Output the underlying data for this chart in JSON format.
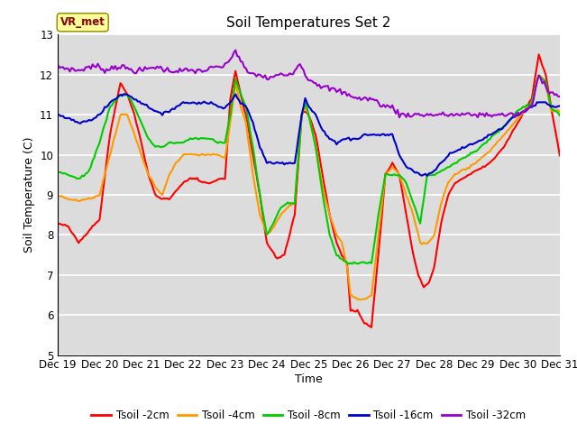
{
  "title": "Soil Temperatures Set 2",
  "xlabel": "Time",
  "ylabel": "Soil Temperature (C)",
  "ylim": [
    5.0,
    13.0
  ],
  "yticks": [
    5.0,
    6.0,
    7.0,
    8.0,
    9.0,
    10.0,
    11.0,
    12.0,
    13.0
  ],
  "background_color": "#dcdcdc",
  "grid_color": "#ffffff",
  "legend_label": "VR_met",
  "series_colors": {
    "Tsoil -2cm": "#ff0000",
    "Tsoil -4cm": "#ff9900",
    "Tsoil -8cm": "#00cc00",
    "Tsoil -16cm": "#0000cc",
    "Tsoil -32cm": "#9900cc"
  },
  "x_tick_labels": [
    "Dec 19",
    "Dec 20",
    "Dec 21",
    "Dec 22",
    "Dec 23",
    "Dec 24",
    "Dec 25",
    "Dec 26",
    "Dec 27",
    "Dec 28",
    "Dec 29",
    "Dec 30",
    "Dec 31"
  ]
}
